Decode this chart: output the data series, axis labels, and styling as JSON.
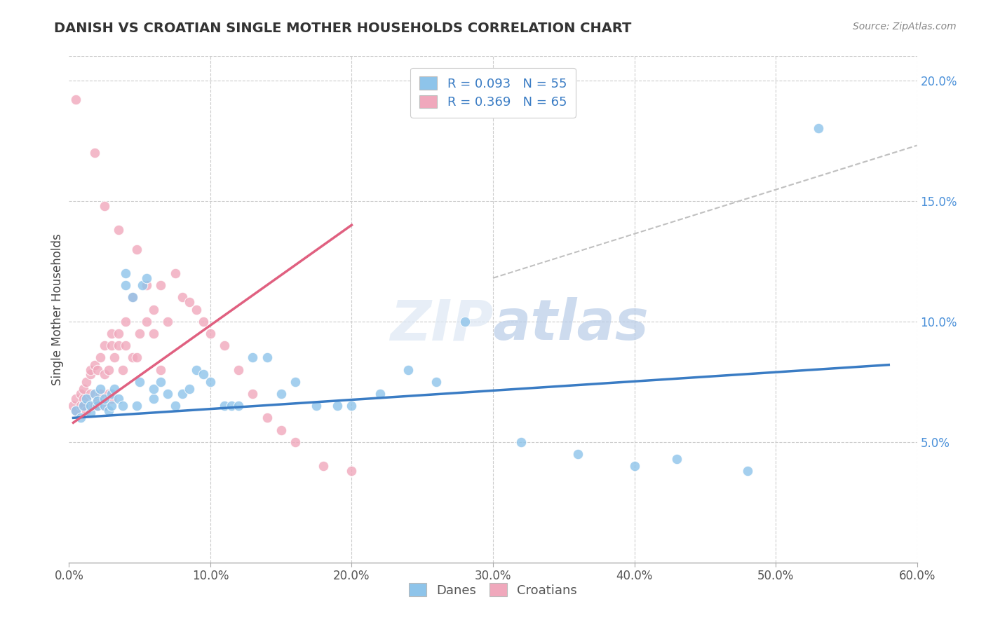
{
  "title": "DANISH VS CROATIAN SINGLE MOTHER HOUSEHOLDS CORRELATION CHART",
  "source": "Source: ZipAtlas.com",
  "ylabel": "Single Mother Households",
  "legend_label1": "Danes",
  "legend_label2": "Croatians",
  "r1": 0.093,
  "n1": 55,
  "r2": 0.369,
  "n2": 65,
  "blue_color": "#8ec4ea",
  "pink_color": "#f0a8bc",
  "blue_line_color": "#3a7cc4",
  "pink_line_color": "#e06080",
  "gray_dash_color": "#c0c0c0",
  "xlim": [
    0.0,
    0.6
  ],
  "ylim": [
    0.0,
    0.21
  ],
  "blue_scatter_x": [
    0.005,
    0.008,
    0.01,
    0.012,
    0.015,
    0.015,
    0.018,
    0.02,
    0.02,
    0.022,
    0.025,
    0.025,
    0.028,
    0.03,
    0.03,
    0.032,
    0.035,
    0.038,
    0.04,
    0.04,
    0.045,
    0.048,
    0.05,
    0.052,
    0.055,
    0.06,
    0.06,
    0.065,
    0.07,
    0.075,
    0.08,
    0.085,
    0.09,
    0.095,
    0.1,
    0.11,
    0.115,
    0.12,
    0.13,
    0.14,
    0.15,
    0.16,
    0.175,
    0.19,
    0.2,
    0.22,
    0.24,
    0.26,
    0.28,
    0.32,
    0.36,
    0.4,
    0.43,
    0.48,
    0.53
  ],
  "blue_scatter_y": [
    0.063,
    0.06,
    0.065,
    0.068,
    0.062,
    0.065,
    0.07,
    0.065,
    0.067,
    0.072,
    0.065,
    0.068,
    0.063,
    0.065,
    0.07,
    0.072,
    0.068,
    0.065,
    0.12,
    0.115,
    0.11,
    0.065,
    0.075,
    0.115,
    0.118,
    0.068,
    0.072,
    0.075,
    0.07,
    0.065,
    0.07,
    0.072,
    0.08,
    0.078,
    0.075,
    0.065,
    0.065,
    0.065,
    0.085,
    0.085,
    0.07,
    0.075,
    0.065,
    0.065,
    0.065,
    0.07,
    0.08,
    0.075,
    0.1,
    0.05,
    0.045,
    0.04,
    0.043,
    0.038,
    0.18
  ],
  "pink_scatter_x": [
    0.003,
    0.005,
    0.005,
    0.008,
    0.008,
    0.01,
    0.01,
    0.01,
    0.012,
    0.012,
    0.015,
    0.015,
    0.015,
    0.015,
    0.018,
    0.018,
    0.02,
    0.02,
    0.02,
    0.022,
    0.022,
    0.025,
    0.025,
    0.025,
    0.028,
    0.028,
    0.03,
    0.03,
    0.03,
    0.032,
    0.035,
    0.035,
    0.038,
    0.04,
    0.04,
    0.045,
    0.045,
    0.048,
    0.05,
    0.055,
    0.055,
    0.06,
    0.06,
    0.065,
    0.065,
    0.07,
    0.075,
    0.08,
    0.085,
    0.09,
    0.095,
    0.1,
    0.11,
    0.12,
    0.13,
    0.14,
    0.15,
    0.16,
    0.18,
    0.2,
    0.005,
    0.018,
    0.025,
    0.035,
    0.048
  ],
  "pink_scatter_y": [
    0.065,
    0.063,
    0.068,
    0.065,
    0.07,
    0.068,
    0.065,
    0.072,
    0.063,
    0.075,
    0.065,
    0.07,
    0.078,
    0.08,
    0.065,
    0.082,
    0.065,
    0.068,
    0.08,
    0.07,
    0.085,
    0.065,
    0.078,
    0.09,
    0.07,
    0.08,
    0.068,
    0.09,
    0.095,
    0.085,
    0.09,
    0.095,
    0.08,
    0.09,
    0.1,
    0.085,
    0.11,
    0.085,
    0.095,
    0.1,
    0.115,
    0.095,
    0.105,
    0.08,
    0.115,
    0.1,
    0.12,
    0.11,
    0.108,
    0.105,
    0.1,
    0.095,
    0.09,
    0.08,
    0.07,
    0.06,
    0.055,
    0.05,
    0.04,
    0.038,
    0.192,
    0.17,
    0.148,
    0.138,
    0.13
  ],
  "blue_trend_x": [
    0.003,
    0.58
  ],
  "blue_trend_y": [
    0.06,
    0.082
  ],
  "pink_trend_x": [
    0.003,
    0.2
  ],
  "pink_trend_y": [
    0.058,
    0.14
  ],
  "gray_x": [
    0.3,
    0.6
  ],
  "gray_y": [
    0.118,
    0.173
  ]
}
